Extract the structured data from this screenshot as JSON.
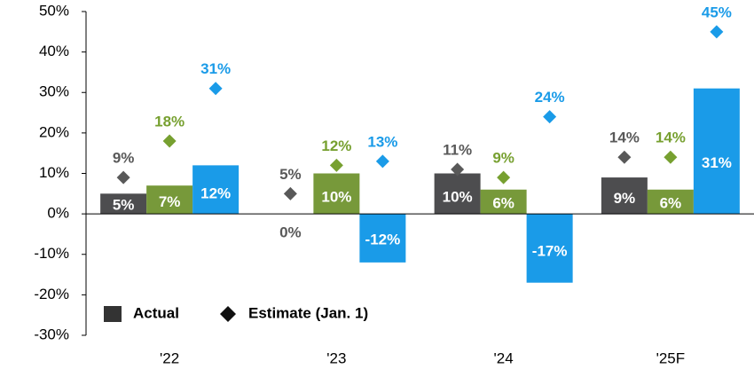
{
  "chart_data": {
    "type": "bar",
    "categories": [
      "'22",
      "'23",
      "'24",
      "'25F"
    ],
    "series": [
      {
        "color": "#4d4d4f",
        "label_color": "#595959",
        "values": [
          5,
          0,
          10,
          9
        ],
        "value_labels": [
          "5%",
          "0%",
          "10%",
          "9%"
        ],
        "estimates": [
          9,
          5,
          11,
          14
        ],
        "estimate_labels": [
          "9%",
          "5%",
          "11%",
          "14%"
        ]
      },
      {
        "color": "#77993a",
        "label_color": "#77a030",
        "values": [
          7,
          10,
          6,
          6
        ],
        "value_labels": [
          "7%",
          "10%",
          "6%",
          "6%"
        ],
        "estimates": [
          18,
          12,
          9,
          14
        ],
        "estimate_labels": [
          "18%",
          "12%",
          "9%",
          "14%"
        ]
      },
      {
        "color": "#1a9be8",
        "label_color": "#1a9be8",
        "values": [
          12,
          -12,
          -17,
          31
        ],
        "value_labels": [
          "12%",
          "-12%",
          "-17%",
          "31%"
        ],
        "estimates": [
          31,
          13,
          24,
          45
        ],
        "estimate_labels": [
          "31%",
          "13%",
          "24%",
          "45%"
        ]
      }
    ],
    "legend": {
      "position": "lower left",
      "items": [
        "Actual",
        "Estimate (Jan. 1)"
      ]
    },
    "ylim": [
      -30,
      50
    ],
    "yticks": [
      {
        "value": -30,
        "label": "-30%"
      },
      {
        "value": -20,
        "label": "-20%"
      },
      {
        "value": -10,
        "label": "-10%"
      },
      {
        "value": 0,
        "label": "0%"
      },
      {
        "value": 10,
        "label": "10%"
      },
      {
        "value": 20,
        "label": "20%"
      },
      {
        "value": 30,
        "label": "30%"
      },
      {
        "value": 40,
        "label": "40%"
      },
      {
        "value": 50,
        "label": "50%"
      }
    ]
  }
}
